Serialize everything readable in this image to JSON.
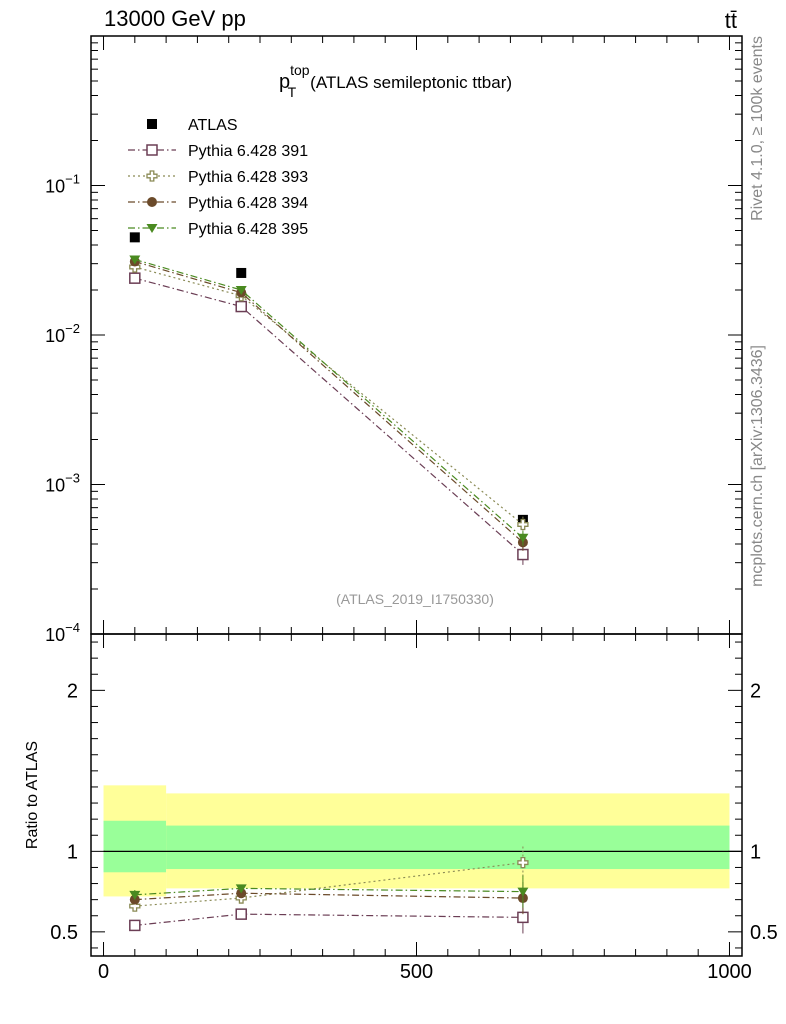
{
  "header": {
    "left": "13000 GeV pp",
    "right": "tt̄"
  },
  "side_labels": {
    "rivet": "Rivet 4.1.0, ≥ 100k events",
    "mcplots": "mcplots.cern.ch [arXiv:1306.3436]"
  },
  "colors": {
    "atlas": "#000000",
    "p391": "#6b3e55",
    "p393": "#8a8a55",
    "p394": "#6b4a2a",
    "p395": "#4a8a20",
    "band_outer": "#ffff99",
    "band_inner": "#99ff99"
  },
  "chart_data": [
    {
      "type": "scatter",
      "panel": "main",
      "title_main": "p",
      "title_sup": "top",
      "title_sub": "T",
      "title_rest": "(ATLAS semileptonic ttbar)",
      "analysis_label": "(ATLAS_2019_I1750330)",
      "yscale": "log",
      "ylim": [
        0.0001,
        1
      ],
      "xlim": [
        -20,
        1020
      ],
      "yticks": [
        {
          "value": 0.1,
          "base": "10",
          "exp": "−1"
        },
        {
          "value": 0.01,
          "base": "10",
          "exp": "−2"
        },
        {
          "value": 0.001,
          "base": "10",
          "exp": "−3"
        },
        {
          "value": 0.0001,
          "base": "10",
          "exp": "−4"
        }
      ],
      "series": [
        {
          "name": "ATLAS",
          "key": "atlas",
          "marker": "square-filled",
          "line": "none",
          "x": [
            50,
            220,
            670
          ],
          "y": [
            0.045,
            0.026,
            0.00058
          ]
        },
        {
          "name": "Pythia 6.428 391",
          "key": "p391",
          "marker": "square-open",
          "line": "dashdot",
          "x": [
            50,
            220,
            670
          ],
          "y": [
            0.024,
            0.0155,
            0.00034
          ],
          "yerr": [
            0.0012,
            0.0008,
            5e-05
          ]
        },
        {
          "name": "Pythia 6.428 393",
          "key": "p393",
          "marker": "cross-open",
          "line": "dotted",
          "x": [
            50,
            220,
            670
          ],
          "y": [
            0.0285,
            0.0183,
            0.00054
          ],
          "yerr": [
            0.0012,
            0.0008,
            7e-05
          ]
        },
        {
          "name": "Pythia 6.428 394",
          "key": "p394",
          "marker": "circle-filled",
          "line": "dashdot",
          "x": [
            50,
            220,
            670
          ],
          "y": [
            0.031,
            0.0192,
            0.00041
          ],
          "yerr": [
            0.0012,
            0.0008,
            5e-05
          ]
        },
        {
          "name": "Pythia 6.428 395",
          "key": "p395",
          "marker": "triangle-filled",
          "line": "dashdot",
          "x": [
            50,
            220,
            670
          ],
          "y": [
            0.032,
            0.02,
            0.00044
          ],
          "yerr": [
            0.0012,
            0.0008,
            5e-05
          ]
        }
      ]
    },
    {
      "type": "scatter",
      "panel": "ratio",
      "ylabel": "Ratio to ATLAS",
      "ylim": [
        0.35,
        2.35
      ],
      "xlim": [
        -20,
        1020
      ],
      "yticks": [
        {
          "value": 0.5,
          "label": "0.5"
        },
        {
          "value": 1,
          "label": "1"
        },
        {
          "value": 2,
          "label": "2"
        }
      ],
      "xticks": [
        {
          "value": 0,
          "label": "0"
        },
        {
          "value": 500,
          "label": "500"
        },
        {
          "value": 1000,
          "label": "1000"
        }
      ],
      "bands": [
        {
          "xmin": 0,
          "xmax": 100,
          "outer": [
            0.72,
            1.41
          ],
          "inner": [
            0.87,
            1.19
          ]
        },
        {
          "xmin": 100,
          "xmax": 1000,
          "outer": [
            0.77,
            1.36
          ],
          "inner": [
            0.89,
            1.16
          ]
        }
      ],
      "series": [
        {
          "key": "p391",
          "marker": "square-open",
          "line": "dashdot",
          "x": [
            50,
            220,
            670
          ],
          "y": [
            0.54,
            0.61,
            0.59
          ],
          "yerr": [
            0.03,
            0.02,
            0.1
          ]
        },
        {
          "key": "p393",
          "marker": "cross-open",
          "line": "dotted",
          "x": [
            50,
            220,
            670
          ],
          "y": [
            0.66,
            0.71,
            0.93
          ],
          "yerr": [
            0.03,
            0.02,
            0.1
          ]
        },
        {
          "key": "p394",
          "marker": "circle-filled",
          "line": "dashdot",
          "x": [
            50,
            220,
            670
          ],
          "y": [
            0.7,
            0.74,
            0.71
          ],
          "yerr": [
            0.03,
            0.02,
            0.1
          ]
        },
        {
          "key": "p395",
          "marker": "triangle-filled",
          "line": "dashdot",
          "x": [
            50,
            220,
            670
          ],
          "y": [
            0.73,
            0.77,
            0.75
          ],
          "yerr": [
            0.03,
            0.02,
            0.1
          ]
        }
      ]
    }
  ]
}
